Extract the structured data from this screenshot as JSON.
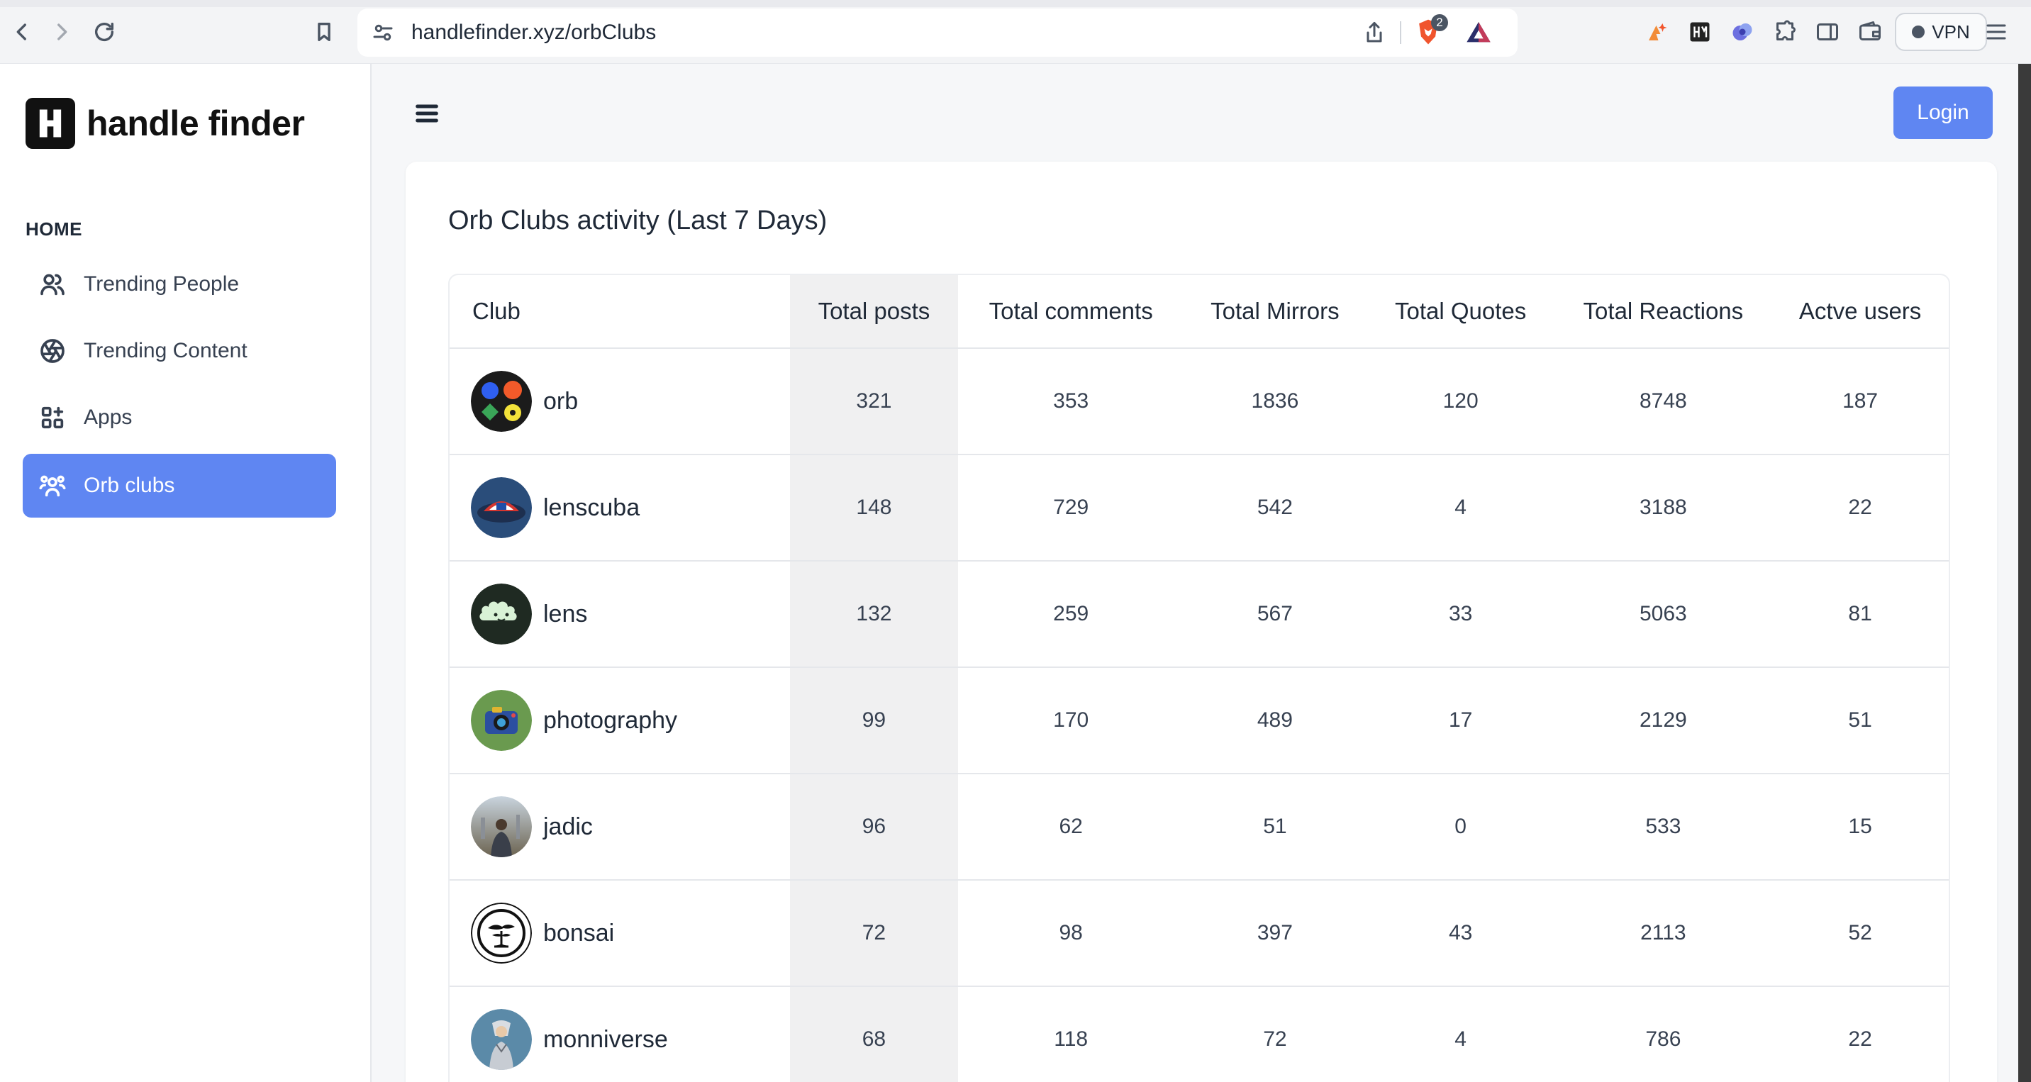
{
  "browser": {
    "url": "handlefinder.xyz/orbClubs",
    "shields_badge": "2",
    "vpn_label": "VPN"
  },
  "sidebar": {
    "logo_text": "handle finder",
    "logo_mark": "H",
    "section_heading": "HOME",
    "items": [
      {
        "label": "Trending People",
        "icon": "users-icon"
      },
      {
        "label": "Trending Content",
        "icon": "aperture-icon"
      },
      {
        "label": "Apps",
        "icon": "apps-grid-icon"
      },
      {
        "label": "Orb clubs",
        "icon": "group-icon",
        "active": true
      }
    ]
  },
  "header": {
    "login_label": "Login"
  },
  "main": {
    "title": "Orb Clubs activity (Last 7 Days)",
    "columns": [
      "Club",
      "Total posts",
      "Total comments",
      "Total Mirrors",
      "Total Quotes",
      "Total Reactions",
      "Actve users"
    ],
    "rows": [
      {
        "club": "orb",
        "posts": "321",
        "comments": "353",
        "mirrors": "1836",
        "quotes": "120",
        "reactions": "8748",
        "users": "187"
      },
      {
        "club": "lenscuba",
        "posts": "148",
        "comments": "729",
        "mirrors": "542",
        "quotes": "4",
        "reactions": "3188",
        "users": "22"
      },
      {
        "club": "lens",
        "posts": "132",
        "comments": "259",
        "mirrors": "567",
        "quotes": "33",
        "reactions": "5063",
        "users": "81"
      },
      {
        "club": "photography",
        "posts": "99",
        "comments": "170",
        "mirrors": "489",
        "quotes": "17",
        "reactions": "2129",
        "users": "51"
      },
      {
        "club": "jadic",
        "posts": "96",
        "comments": "62",
        "mirrors": "51",
        "quotes": "0",
        "reactions": "533",
        "users": "15"
      },
      {
        "club": "bonsai",
        "posts": "72",
        "comments": "98",
        "mirrors": "397",
        "quotes": "43",
        "reactions": "2113",
        "users": "52"
      },
      {
        "club": "monniverse",
        "posts": "68",
        "comments": "118",
        "mirrors": "72",
        "quotes": "4",
        "reactions": "786",
        "users": "22"
      }
    ]
  },
  "colors": {
    "accent": "#5f86f2",
    "sorted_column_bg": "#f0f0f1"
  }
}
